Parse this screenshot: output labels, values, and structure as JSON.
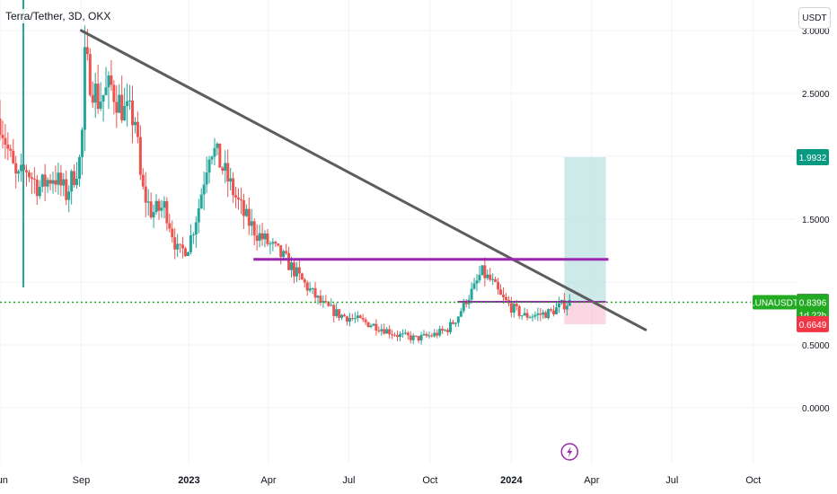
{
  "header": {
    "title": "Terra/Tether, 3D, OKX",
    "currency_button": "USDT"
  },
  "colors": {
    "up": "#26a69a",
    "down": "#ef5350",
    "trendline": "#5d5d5d",
    "resistance": "#9c27b0",
    "profit_zone": "#b2dfdb",
    "loss_zone": "#f8bbd0",
    "current_price": "#22ab22",
    "target_badge": "#089981",
    "stop_badge": "#f23645",
    "entry_badge": "#787b86",
    "event_icon": "#9c27b0"
  },
  "chart_data": {
    "type": "candlestick",
    "symbol": "LUNAUSDT",
    "exchange": "OKX",
    "interval": "3D",
    "y_axis": {
      "scale": "linear",
      "range": [
        -0.45,
        3.2
      ],
      "tick_labels": [
        "3.0000",
        "2.5000",
        "1.5000",
        "0.0000"
      ],
      "tick_values": [
        3.0,
        2.5,
        1.5,
        0.0
      ],
      "partially_hidden_label": "0.5000"
    },
    "x_axis": {
      "range": [
        "2022-06-01",
        "2024-11-18"
      ],
      "ticks": [
        {
          "label": "Jun",
          "date": "2022-06-01",
          "bold": false
        },
        {
          "label": "Sep",
          "date": "2022-09-01",
          "bold": false
        },
        {
          "label": "2023",
          "date": "2023-01-01",
          "bold": true
        },
        {
          "label": "Apr",
          "date": "2023-04-01",
          "bold": false
        },
        {
          "label": "Jul",
          "date": "2023-07-01",
          "bold": false
        },
        {
          "label": "Oct",
          "date": "2023-10-01",
          "bold": false
        },
        {
          "label": "2024",
          "date": "2024-01-01",
          "bold": true
        },
        {
          "label": "Apr",
          "date": "2024-04-01",
          "bold": false
        },
        {
          "label": "Jul",
          "date": "2024-07-01",
          "bold": false
        },
        {
          "label": "Oct",
          "date": "2024-10-01",
          "bold": false
        }
      ]
    },
    "price_path": [
      [
        "2022-06-01",
        2.3
      ],
      [
        "2022-06-10",
        2.05
      ],
      [
        "2022-06-20",
        1.8
      ],
      [
        "2022-07-01",
        1.9
      ],
      [
        "2022-07-15",
        1.75
      ],
      [
        "2022-08-01",
        1.85
      ],
      [
        "2022-08-15",
        1.7
      ],
      [
        "2022-09-01",
        2.0
      ],
      [
        "2022-09-05",
        2.75
      ],
      [
        "2022-09-20",
        2.45
      ],
      [
        "2022-10-05",
        2.55
      ],
      [
        "2022-10-20",
        2.35
      ],
      [
        "2022-11-01",
        2.3
      ],
      [
        "2022-11-08",
        1.75
      ],
      [
        "2022-11-20",
        1.55
      ],
      [
        "2022-12-05",
        1.6
      ],
      [
        "2022-12-20",
        1.22
      ],
      [
        "2023-01-01",
        1.3
      ],
      [
        "2023-01-12",
        1.6
      ],
      [
        "2023-01-25",
        2.1
      ],
      [
        "2023-02-05",
        1.95
      ],
      [
        "2023-02-20",
        1.72
      ],
      [
        "2023-03-05",
        1.52
      ],
      [
        "2023-03-20",
        1.38
      ],
      [
        "2023-04-05",
        1.28
      ],
      [
        "2023-04-20",
        1.18
      ],
      [
        "2023-05-10",
        1.0
      ],
      [
        "2023-06-01",
        0.82
      ],
      [
        "2023-06-20",
        0.74
      ],
      [
        "2023-07-10",
        0.7
      ],
      [
        "2023-08-01",
        0.65
      ],
      [
        "2023-08-25",
        0.58
      ],
      [
        "2023-09-15",
        0.55
      ],
      [
        "2023-10-05",
        0.58
      ],
      [
        "2023-10-20",
        0.62
      ],
      [
        "2023-11-01",
        0.72
      ],
      [
        "2023-11-10",
        0.85
      ],
      [
        "2023-11-20",
        0.95
      ],
      [
        "2023-11-28",
        1.08
      ],
      [
        "2023-12-10",
        1.0
      ],
      [
        "2023-12-20",
        0.88
      ],
      [
        "2024-01-01",
        0.8
      ],
      [
        "2024-01-15",
        0.73
      ],
      [
        "2024-02-01",
        0.74
      ],
      [
        "2024-02-15",
        0.76
      ],
      [
        "2024-02-28",
        0.82
      ],
      [
        "2024-03-08",
        0.84
      ]
    ],
    "trendline": {
      "start": [
        "2022-09-01",
        3.0
      ],
      "end": [
        "2024-06-01",
        0.62
      ]
    },
    "resistance_line": {
      "start": [
        "2023-03-15",
        1.18
      ],
      "end": [
        "2024-04-20",
        1.18
      ]
    },
    "current_price_line": {
      "value": 0.8396
    },
    "position_tool": {
      "start": "2024-03-01",
      "end": "2024-04-17",
      "entry": 0.8431,
      "target": 1.9932,
      "stop": 0.6649,
      "entry_line_start": "2023-11-01"
    },
    "price_labels": {
      "target": "1.9932",
      "entry": "0.8431",
      "current": "0.8396",
      "stop": "0.6649",
      "symbol_tag": "LUNAUSDT",
      "countdown": "1d 22h"
    },
    "event_marker": {
      "date": "2024-03-07",
      "icon": "lightning-icon"
    }
  }
}
